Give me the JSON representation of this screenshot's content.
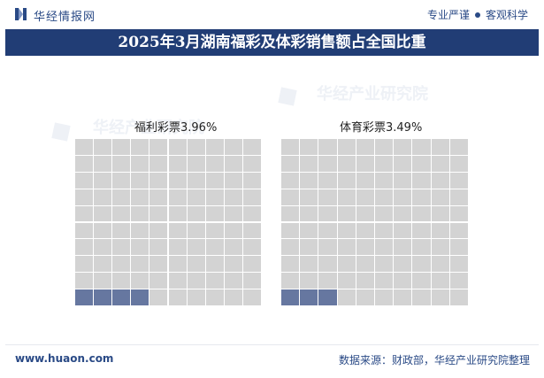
{
  "header": {
    "brand": "华经情报网",
    "tag_left": "专业严谨",
    "tag_right": "客观科学"
  },
  "watermark": {
    "text": "华经产业研究院"
  },
  "footer": {
    "website": "www.huaon.com",
    "source": "数据来源：财政部，华经产业研究院整理"
  },
  "colors": {
    "filled": "#6677a0",
    "empty": "#d3d3d3",
    "title_bg": "#213d75",
    "brand": "#2a4a86"
  },
  "chart_data": {
    "type": "waffle",
    "title": "2025年3月湖南福彩及体彩销售额占全国比重",
    "grid": {
      "rows": 10,
      "cols": 10
    },
    "series": [
      {
        "name": "福利彩票",
        "label": "福利彩票3.96%",
        "value": 3.96
      },
      {
        "name": "体育彩票",
        "label": "体育彩票3.49%",
        "value": 3.49
      }
    ]
  }
}
